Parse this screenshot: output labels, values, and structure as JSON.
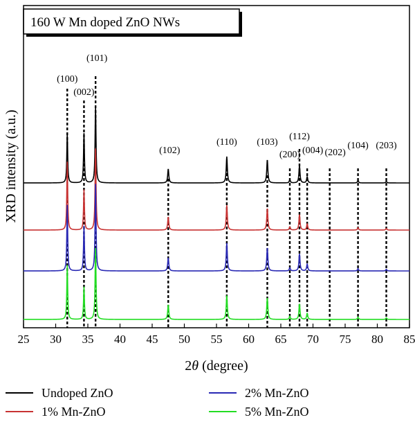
{
  "chart_data": {
    "type": "line",
    "title": "160 W Mn doped ZnO NWs",
    "xlabel_prefix": "2",
    "xlabel_symbol": "θ",
    "xlabel_suffix": " (degree)",
    "ylabel": "XRD intensity (a.u.)",
    "xlim": [
      25,
      85
    ],
    "xticks": [
      25,
      30,
      35,
      40,
      45,
      50,
      55,
      60,
      65,
      70,
      75,
      80,
      85
    ],
    "grid": false,
    "legend_position": "bottom",
    "peaks": [
      {
        "label": "(100)",
        "x": 31.8
      },
      {
        "label": "(002)",
        "x": 34.4
      },
      {
        "label": "(101)",
        "x": 36.2
      },
      {
        "label": "(102)",
        "x": 47.5
      },
      {
        "label": "(110)",
        "x": 56.6
      },
      {
        "label": "(103)",
        "x": 62.9
      },
      {
        "label": "(200)",
        "x": 66.4
      },
      {
        "label": "(112)",
        "x": 67.9
      },
      {
        "label": "(004)",
        "x": 69.1
      },
      {
        "label": "(202)",
        "x": 72.6
      },
      {
        "label": "(104)",
        "x": 77.0
      },
      {
        "label": "(203)",
        "x": 81.4
      }
    ],
    "series": [
      {
        "name": "Undoped ZnO",
        "color": "#000000",
        "peak_heights": [
          0.64,
          0.64,
          0.98,
          0.18,
          0.34,
          0.3,
          0.04,
          0.22,
          0.08,
          0.0,
          0.03,
          0.02
        ]
      },
      {
        "name": "1% Mn-ZnO",
        "color": "#c83232",
        "peak_heights": [
          0.88,
          0.52,
          1.05,
          0.17,
          0.32,
          0.28,
          0.04,
          0.2,
          0.08,
          0.0,
          0.03,
          0.02
        ]
      },
      {
        "name": "2% Mn-ZnO",
        "color": "#2828b4",
        "peak_heights": [
          0.85,
          0.58,
          1.12,
          0.17,
          0.36,
          0.3,
          0.04,
          0.22,
          0.09,
          0.0,
          0.03,
          0.02
        ]
      },
      {
        "name": "5% Mn-ZnO",
        "color": "#22dd22",
        "peak_heights": [
          0.7,
          0.42,
          0.92,
          0.19,
          0.31,
          0.28,
          0.04,
          0.2,
          0.08,
          0.0,
          0.03,
          0.02
        ]
      }
    ]
  }
}
